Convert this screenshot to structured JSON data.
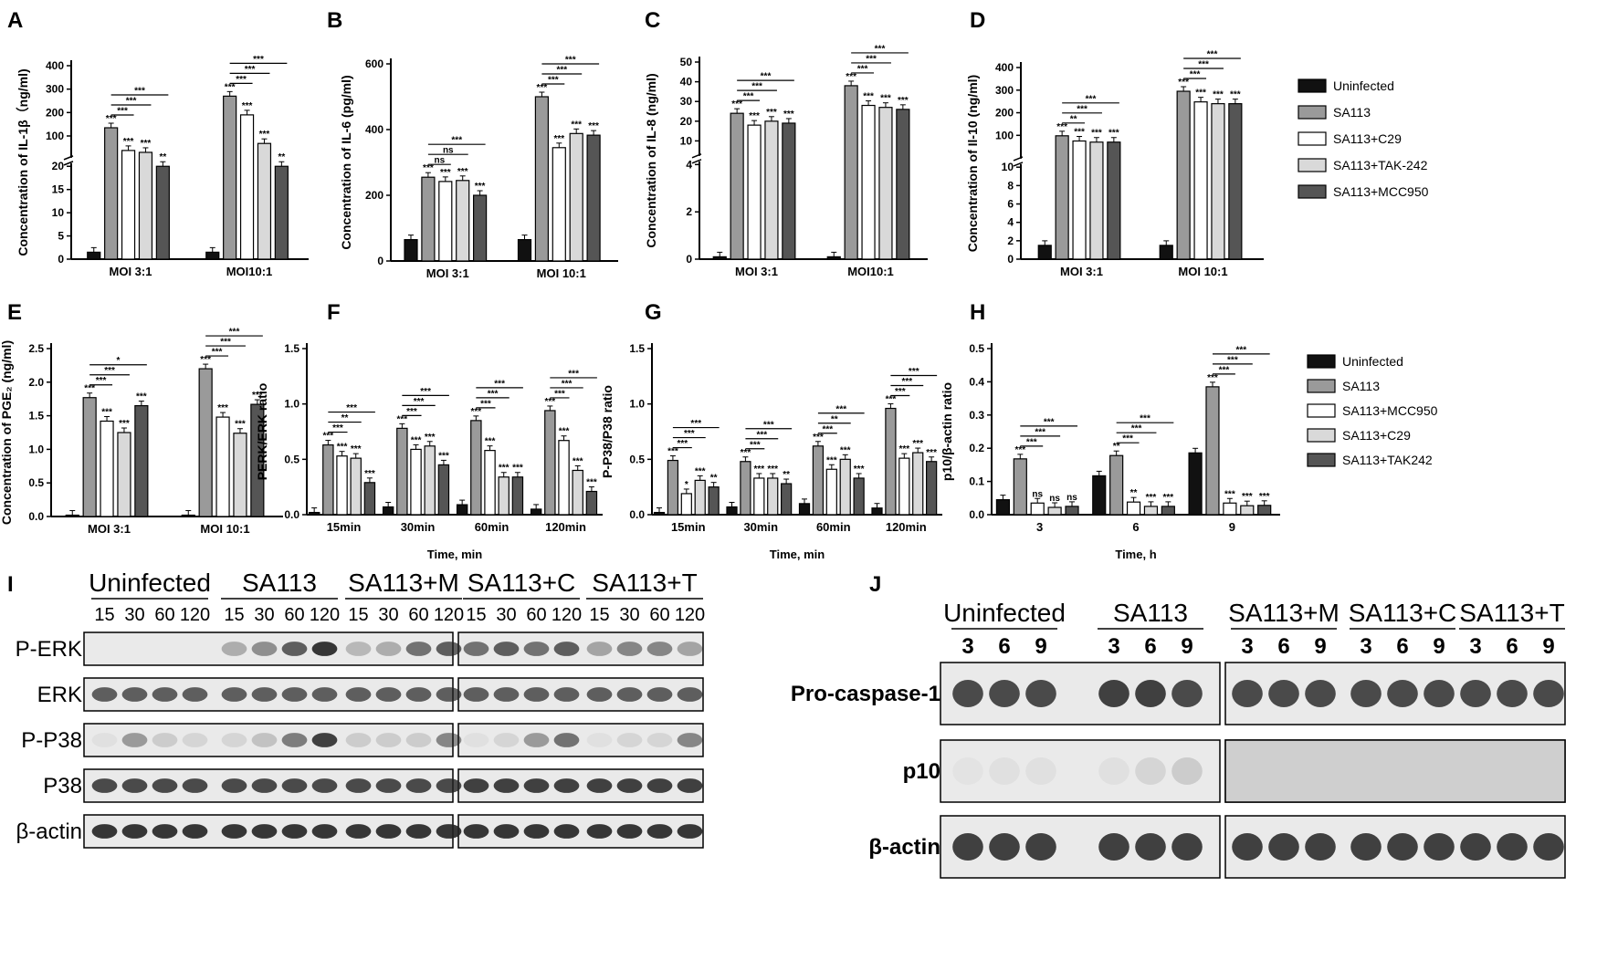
{
  "colors": {
    "Uninfected": "#111111",
    "SA113": "#9a9a9a",
    "SA113+C29": "#ffffff",
    "SA113+TAK-242": "#d9d9d9",
    "SA113+MCC950": "#555555",
    "SA113+MCC950_H": "#ffffff",
    "SA113+C29_H": "#d9d9d9",
    "SA113+TAK242_H": "#555555"
  },
  "chart_data": [
    {
      "id": "A",
      "letter": "A",
      "type": "bar",
      "ylabel": "Concentration of IL-1β（ng/ml)",
      "categories": [
        "MOI 3:1",
        "MOI10:1"
      ],
      "broken": true,
      "lower_ticks": [
        0,
        5,
        10,
        15,
        20
      ],
      "upper_ticks": [
        100,
        200,
        300,
        400
      ],
      "series": [
        {
          "name": "Uninfected",
          "values": [
            1.5,
            1.5
          ]
        },
        {
          "name": "SA113",
          "values": [
            135,
            270
          ]
        },
        {
          "name": "SA113+C29",
          "values": [
            38,
            190
          ]
        },
        {
          "name": "SA113+TAK-242",
          "values": [
            30,
            68
          ]
        },
        {
          "name": "SA113+MCC950",
          "values": [
            20,
            20
          ]
        }
      ],
      "bar_labels": [
        [
          "",
          "***",
          "***",
          "***",
          "**"
        ],
        [
          "",
          "***",
          "***",
          "***",
          "**"
        ]
      ],
      "brackets": [
        [
          "***",
          "***",
          "***"
        ],
        [
          "***",
          "***",
          "***"
        ]
      ]
    },
    {
      "id": "B",
      "letter": "B",
      "type": "bar",
      "ylabel": "Concentration of IL-6 (pg/ml)",
      "categories": [
        "MOI 3:1",
        "MOI 10:1"
      ],
      "broken": false,
      "ticks": [
        0,
        200,
        400,
        600
      ],
      "ylim": [
        0,
        600
      ],
      "series": [
        {
          "name": "Uninfected",
          "values": [
            65,
            65
          ]
        },
        {
          "name": "SA113",
          "values": [
            255,
            500
          ]
        },
        {
          "name": "SA113+C29",
          "values": [
            242,
            345
          ]
        },
        {
          "name": "SA113+TAK-242",
          "values": [
            245,
            388
          ]
        },
        {
          "name": "SA113+MCC950",
          "values": [
            200,
            383
          ]
        }
      ],
      "bar_labels": [
        [
          "",
          "***",
          "***",
          "***",
          "***"
        ],
        [
          "",
          "***",
          "***",
          "***",
          "***"
        ]
      ],
      "brackets": [
        [
          "ns",
          "ns",
          "***"
        ],
        [
          "***",
          "***",
          "***"
        ]
      ]
    },
    {
      "id": "C",
      "letter": "C",
      "type": "bar",
      "ylabel": "Concentration of IL-8 (ng/ml)",
      "categories": [
        "MOI 3:1",
        "MOI10:1"
      ],
      "broken": true,
      "lower_ticks": [
        0,
        2,
        4
      ],
      "upper_ticks": [
        10,
        20,
        30,
        40,
        50
      ],
      "series": [
        {
          "name": "Uninfected",
          "values": [
            0.1,
            0.1
          ]
        },
        {
          "name": "SA113",
          "values": [
            24,
            38
          ]
        },
        {
          "name": "SA113+C29",
          "values": [
            18,
            28
          ]
        },
        {
          "name": "SA113+TAK-242",
          "values": [
            20,
            27
          ]
        },
        {
          "name": "SA113+MCC950",
          "values": [
            19,
            26
          ]
        }
      ],
      "bar_labels": [
        [
          "",
          "***",
          "***",
          "***",
          "***"
        ],
        [
          "",
          "***",
          "***",
          "***",
          "***"
        ]
      ],
      "brackets": [
        [
          "***",
          "***",
          "***"
        ],
        [
          "***",
          "***",
          "***"
        ]
      ]
    },
    {
      "id": "D",
      "letter": "D",
      "type": "bar",
      "ylabel": "Concentration of Il-10 (ng/ml)",
      "categories": [
        "MOI 3:1",
        "MOI 10:1"
      ],
      "broken": true,
      "lower_ticks": [
        0,
        2,
        4,
        6,
        8,
        10
      ],
      "upper_ticks": [
        100,
        200,
        300,
        400
      ],
      "series": [
        {
          "name": "Uninfected",
          "values": [
            1.5,
            1.5
          ]
        },
        {
          "name": "SA113",
          "values": [
            98,
            295
          ]
        },
        {
          "name": "SA113+C29",
          "values": [
            75,
            248
          ]
        },
        {
          "name": "SA113+TAK-242",
          "values": [
            70,
            240
          ]
        },
        {
          "name": "SA113+MCC950",
          "values": [
            70,
            240
          ]
        }
      ],
      "bar_labels": [
        [
          "",
          "***",
          "***",
          "***",
          "***"
        ],
        [
          "",
          "***",
          "***",
          "***",
          "***"
        ]
      ],
      "brackets": [
        [
          "**",
          "***",
          "***"
        ],
        [
          "***",
          "***",
          "***"
        ]
      ]
    },
    {
      "id": "E",
      "letter": "E",
      "type": "bar",
      "ylabel": "Concentration of PGE₂ (ng/ml)",
      "categories": [
        "MOI 3:1",
        "MOI 10:1"
      ],
      "broken": false,
      "ticks": [
        0.0,
        0.5,
        1.0,
        1.5,
        2.0,
        2.5
      ],
      "ylim": [
        0,
        2.5
      ],
      "series": [
        {
          "name": "Uninfected",
          "values": [
            0.02,
            0.02
          ]
        },
        {
          "name": "SA113",
          "values": [
            1.77,
            2.2
          ]
        },
        {
          "name": "SA113+C29",
          "values": [
            1.42,
            1.48
          ]
        },
        {
          "name": "SA113+TAK-242",
          "values": [
            1.25,
            1.24
          ]
        },
        {
          "name": "SA113+MCC950",
          "values": [
            1.65,
            1.67
          ]
        }
      ],
      "bar_labels": [
        [
          "",
          "***",
          "***",
          "***",
          "***"
        ],
        [
          "",
          "***",
          "***",
          "***",
          "***"
        ]
      ],
      "brackets": [
        [
          "***",
          "***",
          "*"
        ],
        [
          "***",
          "***",
          "***"
        ]
      ]
    },
    {
      "id": "F",
      "letter": "F",
      "type": "bar",
      "ylabel": "PERK/ERK ratio",
      "xlabel": "Time, min",
      "categories": [
        "15min",
        "30min",
        "60min",
        "120min"
      ],
      "broken": false,
      "ticks": [
        0.0,
        0.5,
        1.0,
        1.5
      ],
      "ylim": [
        0,
        1.5
      ],
      "series": [
        {
          "name": "Uninfected",
          "values": [
            0.02,
            0.07,
            0.09,
            0.05
          ]
        },
        {
          "name": "SA113",
          "values": [
            0.63,
            0.78,
            0.85,
            0.94
          ]
        },
        {
          "name": "SA113+MCC950",
          "values": [
            0.53,
            0.59,
            0.58,
            0.67
          ]
        },
        {
          "name": "SA113+C29",
          "values": [
            0.51,
            0.62,
            0.34,
            0.4
          ]
        },
        {
          "name": "SA113+TAK242",
          "values": [
            0.29,
            0.45,
            0.34,
            0.21
          ]
        }
      ],
      "bar_labels": [
        [
          "",
          "***",
          "***",
          "***",
          "***"
        ],
        [
          "",
          "***",
          "***",
          "***",
          "***"
        ],
        [
          "",
          "***",
          "***",
          "***",
          "***"
        ],
        [
          "",
          "***",
          "***",
          "***",
          "***"
        ]
      ],
      "brackets": [
        [
          "***",
          "**",
          "***"
        ],
        [
          "***",
          "***",
          "***"
        ],
        [
          "***",
          "***",
          "***"
        ],
        [
          "***",
          "***",
          "***"
        ]
      ]
    },
    {
      "id": "G",
      "letter": "G",
      "type": "bar",
      "ylabel": "P-P38/P38 ratio",
      "xlabel": "Time, min",
      "categories": [
        "15min",
        "30min",
        "60min",
        "120min"
      ],
      "broken": false,
      "ticks": [
        0.0,
        0.5,
        1.0,
        1.5
      ],
      "ylim": [
        0,
        1.5
      ],
      "series": [
        {
          "name": "Uninfected",
          "values": [
            0.02,
            0.07,
            0.1,
            0.06
          ]
        },
        {
          "name": "SA113",
          "values": [
            0.49,
            0.48,
            0.62,
            0.96
          ]
        },
        {
          "name": "SA113+MCC950",
          "values": [
            0.19,
            0.33,
            0.41,
            0.51
          ]
        },
        {
          "name": "SA113+C29",
          "values": [
            0.31,
            0.33,
            0.5,
            0.56
          ]
        },
        {
          "name": "SA113+TAK242",
          "values": [
            0.25,
            0.28,
            0.33,
            0.48
          ]
        }
      ],
      "bar_labels": [
        [
          "",
          "***",
          "*",
          "***",
          "**"
        ],
        [
          "",
          "***",
          "***",
          "***",
          "**"
        ],
        [
          "",
          "***",
          "***",
          "***",
          "***"
        ],
        [
          "",
          "***",
          "***",
          "***",
          "***"
        ]
      ],
      "brackets": [
        [
          "***",
          "***",
          "***"
        ],
        [
          "***",
          "***",
          "***"
        ],
        [
          "***",
          "**",
          "***"
        ],
        [
          "***",
          "***",
          "***"
        ]
      ]
    },
    {
      "id": "H",
      "letter": "H",
      "type": "bar",
      "ylabel": "p10/β-actin ratio",
      "xlabel": "Time, h",
      "categories": [
        "3",
        "6",
        "9"
      ],
      "broken": false,
      "ticks": [
        0.0,
        0.1,
        0.2,
        0.3,
        0.4,
        0.5
      ],
      "ylim": [
        0,
        0.5
      ],
      "series": [
        {
          "name": "Uninfected",
          "values": [
            0.045,
            0.117,
            0.186
          ]
        },
        {
          "name": "SA113",
          "values": [
            0.168,
            0.178,
            0.385
          ]
        },
        {
          "name": "SA113+MCC950",
          "values": [
            0.035,
            0.038,
            0.035
          ]
        },
        {
          "name": "SA113+C29",
          "values": [
            0.022,
            0.025,
            0.027
          ]
        },
        {
          "name": "SA113+TAK242",
          "values": [
            0.025,
            0.025,
            0.028
          ]
        }
      ],
      "bar_labels": [
        [
          "",
          "***",
          "ns",
          "ns",
          "ns"
        ],
        [
          "",
          "**",
          "**",
          "***",
          "***"
        ],
        [
          "",
          "***",
          "***",
          "***",
          "***"
        ]
      ],
      "brackets": [
        [
          "***",
          "***",
          "***"
        ],
        [
          "***",
          "***",
          "***"
        ],
        [
          "***",
          "***",
          "***"
        ]
      ]
    }
  ],
  "legend_top": [
    "Uninfected",
    "SA113",
    "SA113+C29",
    "SA113+TAK-242",
    "SA113+MCC950"
  ],
  "legend_bottom": [
    "Uninfected",
    "SA113",
    "SA113+MCC950",
    "SA113+C29",
    "SA113+TAK242"
  ],
  "blot_I": {
    "letter": "I",
    "groups": [
      "Uninfected",
      "SA113",
      "SA113+M",
      "SA113+C",
      "SA113+T"
    ],
    "lanes": [
      "15",
      "30",
      "60",
      "120"
    ],
    "rows": [
      "P-ERK",
      "ERK",
      "P-P38",
      "P38",
      "β-actin"
    ]
  },
  "blot_J": {
    "letter": "J",
    "groups": [
      "Uninfected",
      "SA113",
      "SA113+M",
      "SA113+C",
      "SA113+T"
    ],
    "lanes": [
      "3",
      "6",
      "9"
    ],
    "rows": [
      "Pro-caspase-1",
      "p10",
      "β-actin"
    ]
  }
}
